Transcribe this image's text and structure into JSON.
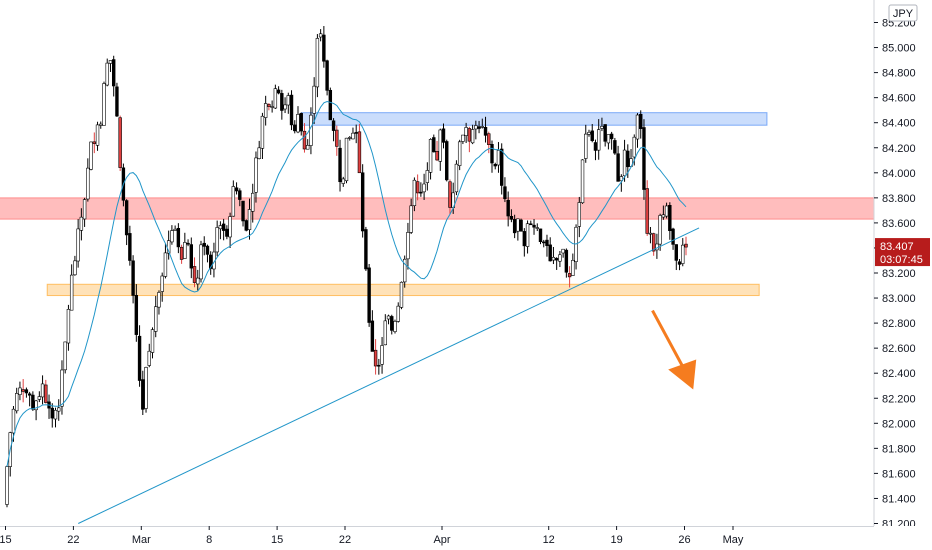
{
  "chart_data": {
    "type": "candlestick",
    "currency_badge": "JPY",
    "y_axis": {
      "min": 81.2,
      "max": 85.35,
      "ticks": [
        "85.200",
        "85.000",
        "84.800",
        "84.600",
        "84.400",
        "84.200",
        "84.000",
        "83.800",
        "83.600",
        "83.400",
        "83.200",
        "83.000",
        "82.800",
        "82.600",
        "82.400",
        "82.200",
        "82.000",
        "81.800",
        "81.600",
        "81.400",
        "81.200"
      ],
      "tick_values": [
        85.2,
        85.0,
        84.8,
        84.6,
        84.4,
        84.2,
        84.0,
        83.8,
        83.6,
        83.4,
        83.2,
        83.0,
        82.8,
        82.6,
        82.4,
        82.2,
        82.0,
        81.8,
        81.6,
        81.4,
        81.2
      ]
    },
    "x_axis": {
      "ticks": [
        {
          "label": "15",
          "day": 0
        },
        {
          "label": "22",
          "day": 7
        },
        {
          "label": "Mar",
          "day": 14
        },
        {
          "label": "8",
          "day": 21
        },
        {
          "label": "15",
          "day": 28
        },
        {
          "label": "22",
          "day": 35
        },
        {
          "label": "Apr",
          "day": 45
        },
        {
          "label": "12",
          "day": 56
        },
        {
          "label": "19",
          "day": 63
        },
        {
          "label": "26",
          "day": 70
        },
        {
          "label": "May",
          "day": 75
        }
      ]
    },
    "current_price": {
      "value": "83.407",
      "countdown": "03:07:45",
      "price": 83.407
    },
    "price_path": [
      [
        0,
        81.35
      ],
      [
        0.6,
        81.9
      ],
      [
        1.2,
        82.2
      ],
      [
        2,
        82.3
      ],
      [
        3,
        82.15
      ],
      [
        4,
        82.3
      ],
      [
        5,
        82.05
      ],
      [
        5.8,
        82.2
      ],
      [
        6.3,
        82.6
      ],
      [
        6.8,
        83.05
      ],
      [
        7.3,
        83.3
      ],
      [
        7.8,
        83.55
      ],
      [
        8.3,
        83.8
      ],
      [
        9,
        84.2
      ],
      [
        9.5,
        84.35
      ],
      [
        10,
        84.45
      ],
      [
        10.6,
        84.85
      ],
      [
        11,
        84.9
      ],
      [
        11.5,
        84.6
      ],
      [
        12,
        84.1
      ],
      [
        12.5,
        83.6
      ],
      [
        13,
        83.3
      ],
      [
        13.5,
        82.8
      ],
      [
        14,
        82.35
      ],
      [
        14.3,
        82.1
      ],
      [
        14.8,
        82.5
      ],
      [
        15.3,
        82.7
      ],
      [
        15.8,
        83.05
      ],
      [
        16.3,
        83.2
      ],
      [
        16.8,
        83.4
      ],
      [
        17.3,
        83.6
      ],
      [
        17.8,
        83.55
      ],
      [
        18.3,
        83.35
      ],
      [
        18.8,
        83.55
      ],
      [
        19.3,
        83.25
      ],
      [
        19.8,
        83.1
      ],
      [
        20.3,
        83.35
      ],
      [
        20.8,
        83.5
      ],
      [
        21.3,
        83.2
      ],
      [
        21.8,
        83.5
      ],
      [
        22.3,
        83.65
      ],
      [
        22.8,
        83.45
      ],
      [
        23.3,
        83.7
      ],
      [
        23.8,
        83.9
      ],
      [
        24.3,
        83.8
      ],
      [
        24.8,
        83.55
      ],
      [
        25.3,
        83.7
      ],
      [
        25.8,
        83.95
      ],
      [
        26.3,
        84.25
      ],
      [
        26.8,
        84.5
      ],
      [
        27.3,
        84.6
      ],
      [
        27.8,
        84.55
      ],
      [
        28.3,
        84.7
      ],
      [
        28.8,
        84.5
      ],
      [
        29.3,
        84.6
      ],
      [
        29.8,
        84.35
      ],
      [
        30.3,
        84.45
      ],
      [
        30.8,
        84.3
      ],
      [
        31.3,
        84.2
      ],
      [
        31.8,
        84.5
      ],
      [
        32.2,
        85.0
      ],
      [
        32.5,
        85.25
      ],
      [
        32.8,
        84.95
      ],
      [
        33.3,
        84.7
      ],
      [
        33.8,
        84.4
      ],
      [
        34.3,
        84.2
      ],
      [
        34.8,
        83.9
      ],
      [
        35.3,
        84.2
      ],
      [
        35.8,
        84.3
      ],
      [
        36.3,
        84.35
      ],
      [
        36.8,
        83.8
      ],
      [
        37.3,
        83.2
      ],
      [
        37.8,
        82.7
      ],
      [
        38.2,
        82.5
      ],
      [
        38.6,
        82.45
      ],
      [
        39,
        82.65
      ],
      [
        39.5,
        82.85
      ],
      [
        40,
        82.75
      ],
      [
        40.5,
        82.9
      ],
      [
        41,
        83.1
      ],
      [
        41.5,
        83.5
      ],
      [
        42,
        83.75
      ],
      [
        42.5,
        83.95
      ],
      [
        43,
        83.8
      ],
      [
        43.5,
        83.95
      ],
      [
        44,
        84.2
      ],
      [
        44.5,
        84.05
      ],
      [
        45,
        84.3
      ],
      [
        45.5,
        84.15
      ],
      [
        46,
        83.7
      ],
      [
        46.5,
        83.95
      ],
      [
        47,
        84.3
      ],
      [
        47.5,
        84.35
      ],
      [
        48,
        84.2
      ],
      [
        48.5,
        84.35
      ],
      [
        49,
        84.4
      ],
      [
        49.5,
        84.3
      ],
      [
        50,
        84.2
      ],
      [
        50.5,
        84.05
      ],
      [
        51,
        84.15
      ],
      [
        51.5,
        83.85
      ],
      [
        52,
        83.65
      ],
      [
        52.5,
        83.55
      ],
      [
        53,
        83.6
      ],
      [
        53.5,
        83.4
      ],
      [
        54,
        83.65
      ],
      [
        54.5,
        83.55
      ],
      [
        55,
        83.6
      ],
      [
        55.5,
        83.35
      ],
      [
        56,
        83.45
      ],
      [
        56.5,
        83.3
      ],
      [
        57,
        83.3
      ],
      [
        57.5,
        83.4
      ],
      [
        58,
        83.2
      ],
      [
        58.5,
        83.15
      ],
      [
        59,
        83.55
      ],
      [
        59.5,
        83.95
      ],
      [
        60,
        84.25
      ],
      [
        60.5,
        84.3
      ],
      [
        61,
        84.2
      ],
      [
        61.5,
        84.35
      ],
      [
        62,
        84.25
      ],
      [
        62.5,
        84.3
      ],
      [
        63,
        84.1
      ],
      [
        63.5,
        83.95
      ],
      [
        64,
        84.2
      ],
      [
        64.5,
        83.9
      ],
      [
        65,
        84.35
      ],
      [
        65.4,
        84.55
      ],
      [
        65.8,
        84.2
      ],
      [
        66.2,
        83.6
      ],
      [
        66.7,
        83.5
      ],
      [
        67.2,
        83.3
      ],
      [
        67.7,
        83.75
      ],
      [
        68.2,
        83.7
      ],
      [
        68.7,
        83.6
      ],
      [
        69.2,
        83.3
      ],
      [
        69.5,
        83.15
      ],
      [
        69.9,
        83.35
      ],
      [
        70.2,
        83.407
      ]
    ],
    "annotations": {
      "blue_zone": {
        "from_day": 30.5,
        "to_day": 78.5,
        "low": 84.38,
        "high": 84.48
      },
      "red_zone": {
        "from_day": -1,
        "to_day": 90,
        "low": 83.63,
        "high": 83.8
      },
      "orange_zone": {
        "from_day": 4.3,
        "to_day": 77.7,
        "low": 83.02,
        "high": 83.11
      },
      "trendline": {
        "from": [
          7.5,
          81.2
        ],
        "to": [
          71.5,
          83.56
        ]
      },
      "arrow": {
        "from": [
          66.7,
          82.9
        ],
        "to": [
          70.9,
          82.27
        ],
        "color": "#f57c1f"
      }
    },
    "colors": {
      "up": "#ffffff",
      "down": "#000000",
      "down_highlight": "#e04040",
      "ma": "#2196c9",
      "price_tag": "#b71c1c",
      "axis": "#131722"
    }
  }
}
